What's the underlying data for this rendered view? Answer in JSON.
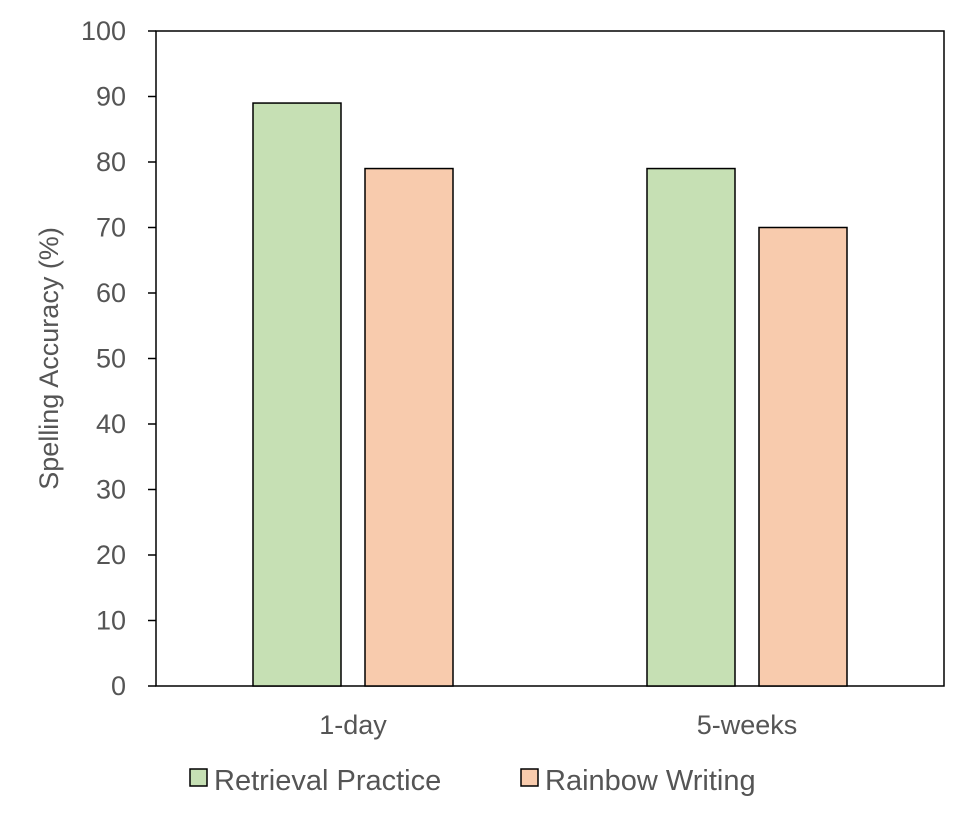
{
  "chart_data": {
    "type": "bar",
    "categories": [
      "1-day",
      "5-weeks"
    ],
    "series": [
      {
        "name": "Retrieval Practice",
        "values": [
          89,
          79
        ],
        "color": "#c6e0b4"
      },
      {
        "name": "Rainbow Writing",
        "values": [
          79,
          70
        ],
        "color": "#f8cbad"
      }
    ],
    "title": "",
    "xlabel": "",
    "ylabel": "Spelling Accuracy (%)",
    "ylim": [
      0,
      100
    ],
    "yticks": [
      0,
      10,
      20,
      30,
      40,
      50,
      60,
      70,
      80,
      90,
      100
    ],
    "grid": false,
    "legend_position": "bottom"
  }
}
